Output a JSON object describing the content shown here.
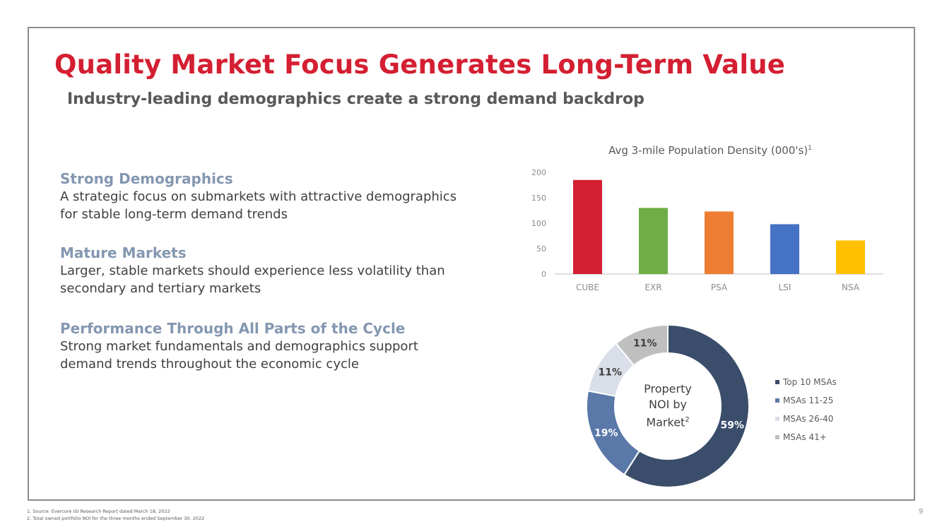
{
  "title": "Quality Market Focus Generates Long-Term Value",
  "subtitle": "Industry-leading demographics create a strong demand backdrop",
  "sections": [
    {
      "heading": "Strong Demographics",
      "body_lines": [
        "A strategic focus on submarkets with attractive demographics",
        "for stable long-term demand trends"
      ]
    },
    {
      "heading": "Mature Markets",
      "body_lines": [
        "Larger, stable markets should experience less volatility than",
        "secondary and tertiary markets"
      ]
    },
    {
      "heading": "Performance Through All Parts of the Cycle",
      "body_lines": [
        "Strong market fundamentals and demographics support",
        "demand trends throughout the economic cycle"
      ]
    }
  ],
  "chart_data": [
    {
      "type": "bar",
      "title": "Avg 3-mile Population Density (000's)",
      "title_sup": "1",
      "categories": [
        "CUBE",
        "EXR",
        "PSA",
        "LSI",
        "NSA"
      ],
      "values": [
        185,
        130,
        123,
        98,
        66
      ],
      "colors": [
        "#d41f32",
        "#70ad47",
        "#ed7d31",
        "#4472c4",
        "#ffc000"
      ],
      "ylim": [
        0,
        200
      ],
      "yticks": [
        0,
        50,
        100,
        150,
        200
      ],
      "xlabel": "",
      "ylabel": "",
      "grid": false
    },
    {
      "type": "pie",
      "title": "Property NOI by Market",
      "center_lines": [
        "Property",
        "NOI by",
        "Market"
      ],
      "center_sup": "2",
      "labels": [
        "Top 10 MSAs",
        "MSAs 11-25",
        "MSAs 26-40",
        "MSAs 41+"
      ],
      "values": [
        59,
        19,
        11,
        11
      ],
      "value_labels": [
        "59%",
        "19%",
        "11%",
        "11%"
      ],
      "colors": [
        "#3a4d6b",
        "#5a78a8",
        "#d9dee8",
        "#bfbfbf"
      ],
      "legend_position": "right"
    }
  ],
  "footnotes": [
    "1.   Source: Evercore ISI Research Report dated March 18, 2022",
    "2.   Total owned portfolio NOI for the three months ended September 30, 2022"
  ],
  "page_number": "9"
}
